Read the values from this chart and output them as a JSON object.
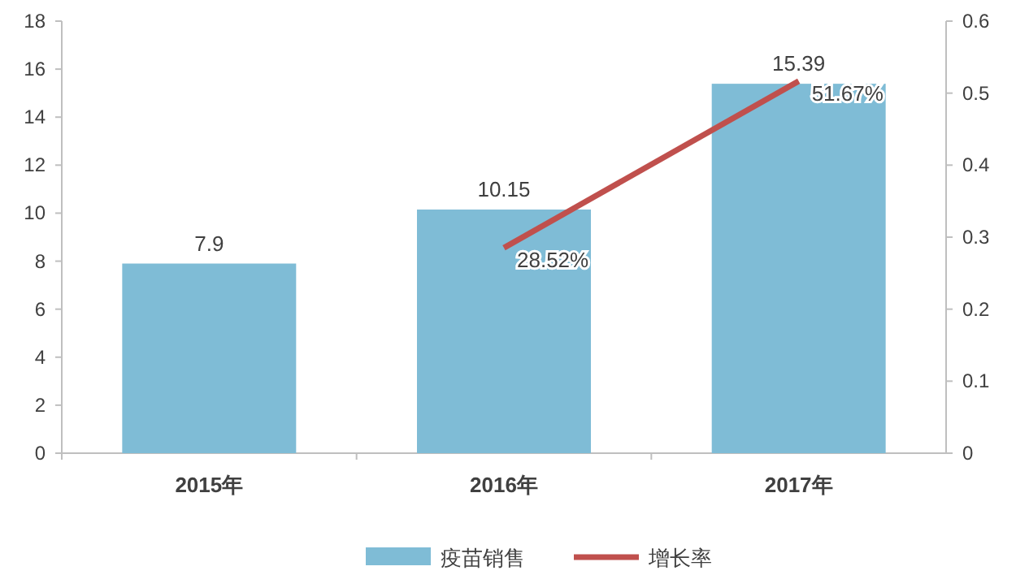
{
  "chart_data": {
    "type": "bar",
    "categories": [
      "2015年",
      "2016年",
      "2017年"
    ],
    "series": [
      {
        "name": "疫苗销售",
        "color": "#7fbcd6",
        "values": [
          7.9,
          10.15,
          15.39
        ]
      },
      {
        "name": "增长率",
        "type": "line",
        "axis": "y2",
        "color": "#c0504d",
        "values": [
          null,
          0.2852,
          0.5167
        ],
        "value_labels": [
          null,
          "28.52%",
          "51.67%"
        ]
      }
    ],
    "data_labels": true,
    "ylim": [
      0,
      18
    ],
    "yticks": [
      0,
      2,
      4,
      6,
      8,
      10,
      12,
      14,
      16,
      18
    ],
    "y2lim": [
      0,
      0.6
    ],
    "y2ticks": [
      0,
      0.1,
      0.2,
      0.3,
      0.4,
      0.5,
      0.6
    ],
    "grid": false,
    "legend": "bottom",
    "marker": "none"
  }
}
